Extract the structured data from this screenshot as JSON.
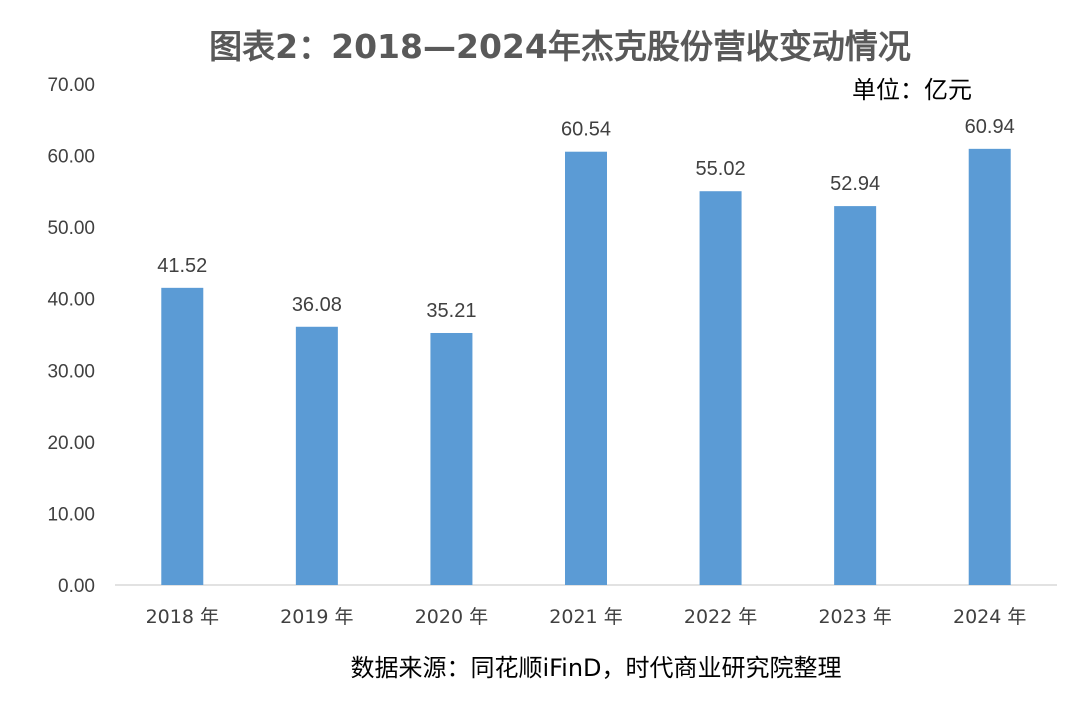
{
  "chart_data": {
    "type": "bar",
    "title": "图表2：2018—2024年杰克股份营收变动情况",
    "unit_label": "单位：亿元",
    "source": "数据来源：同花顺iFinD，时代商业研究院整理",
    "categories": [
      "2018 年",
      "2019 年",
      "2020 年",
      "2021 年",
      "2022 年",
      "2023 年",
      "2024 年"
    ],
    "values": [
      41.52,
      36.08,
      35.21,
      60.54,
      55.02,
      52.94,
      60.94
    ],
    "data_labels": [
      "41.52",
      "36.08",
      "35.21",
      "60.54",
      "55.02",
      "52.94",
      "60.94"
    ],
    "y_ticks": [
      "0.00",
      "10.00",
      "20.00",
      "30.00",
      "40.00",
      "50.00",
      "60.00",
      "70.00"
    ],
    "ylim": [
      0,
      70
    ],
    "grid": false,
    "legend": "none",
    "bar_color": "#5B9BD5"
  }
}
